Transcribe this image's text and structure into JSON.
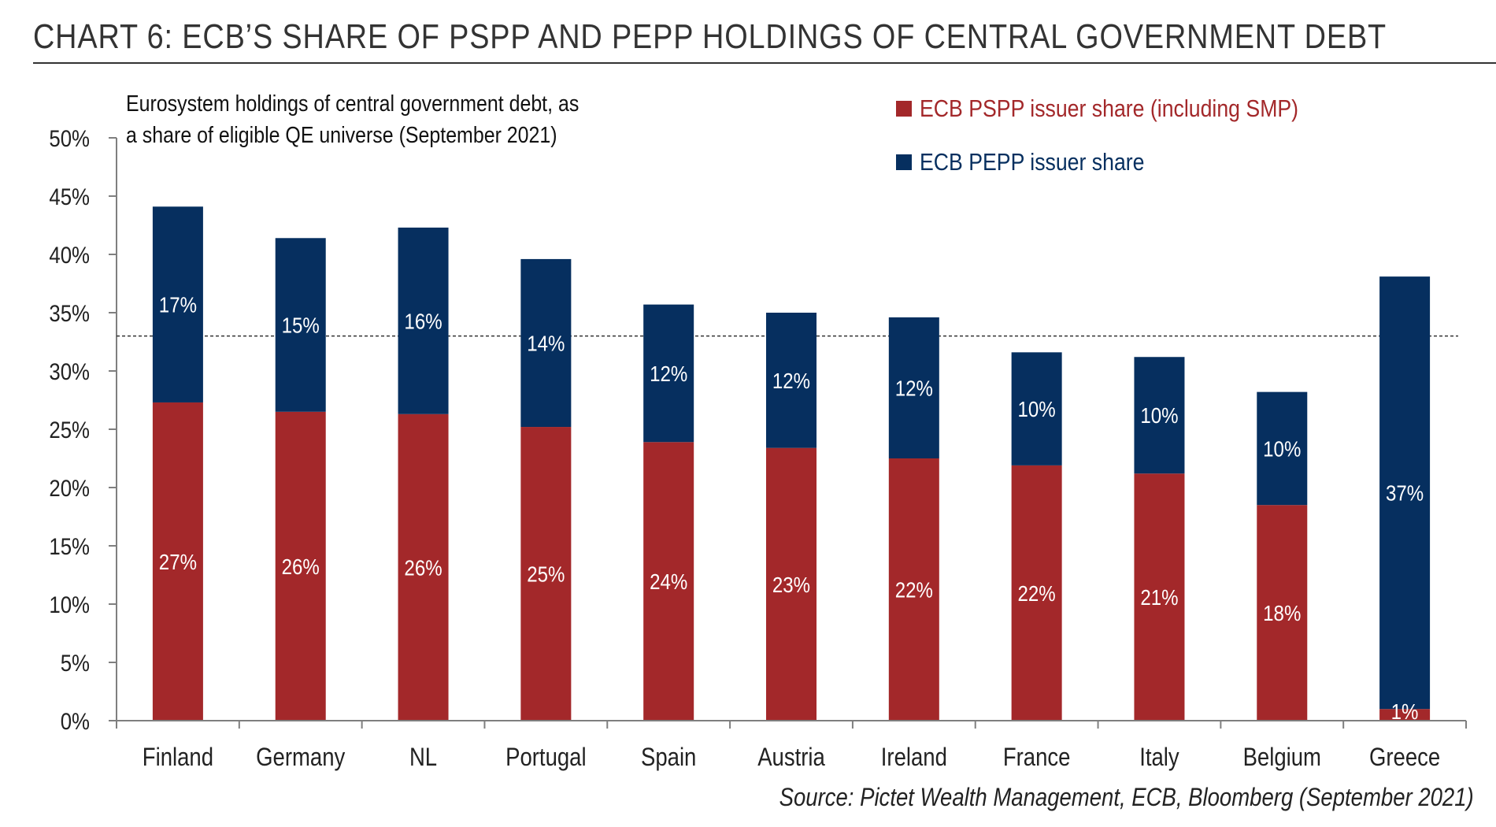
{
  "title": "CHART 6: ECB’S SHARE OF PSPP AND PEPP HOLDINGS OF CENTRAL GOVERNMENT DEBT",
  "subtitle_line1": "Eurosystem holdings of central government debt, as",
  "subtitle_line2": "a share of eligible QE universe (September 2021)",
  "source": "Source: Pictet Wealth Management, ECB, Bloomberg (September 2021)",
  "colors": {
    "pspp": "#a3282a",
    "pepp": "#062f5f"
  },
  "legend": [
    {
      "label": "ECB PSPP issuer share (including SMP)",
      "color": "#a3282a"
    },
    {
      "label": "ECB PEPP issuer share",
      "color": "#062f5f"
    }
  ],
  "chart_data": {
    "type": "bar",
    "stacked": true,
    "categories": [
      "Finland",
      "Germany",
      "NL",
      "Portugal",
      "Spain",
      "Austria",
      "Ireland",
      "France",
      "Italy",
      "Belgium",
      "Greece"
    ],
    "series": [
      {
        "name": "ECB PSPP issuer share (including SMP)",
        "values": [
          27.3,
          26.5,
          26.3,
          25.2,
          23.9,
          23.4,
          22.5,
          21.9,
          21.2,
          18.5,
          1.0
        ],
        "labels": [
          "27%",
          "26%",
          "26%",
          "25%",
          "24%",
          "23%",
          "22%",
          "22%",
          "21%",
          "18%",
          "1%"
        ]
      },
      {
        "name": "ECB PEPP issuer share",
        "values": [
          16.8,
          14.9,
          16.0,
          14.4,
          11.8,
          11.6,
          12.1,
          9.7,
          10.0,
          9.7,
          37.1
        ],
        "labels": [
          "17%",
          "15%",
          "16%",
          "14%",
          "12%",
          "12%",
          "12%",
          "10%",
          "10%",
          "10%",
          "37%"
        ]
      }
    ],
    "yticks": [
      "0%",
      "5%",
      "10%",
      "15%",
      "20%",
      "25%",
      "30%",
      "35%",
      "40%",
      "45%",
      "50%"
    ],
    "ylim": [
      0,
      50
    ],
    "reference_line": 33,
    "xlabel": "",
    "ylabel": ""
  }
}
